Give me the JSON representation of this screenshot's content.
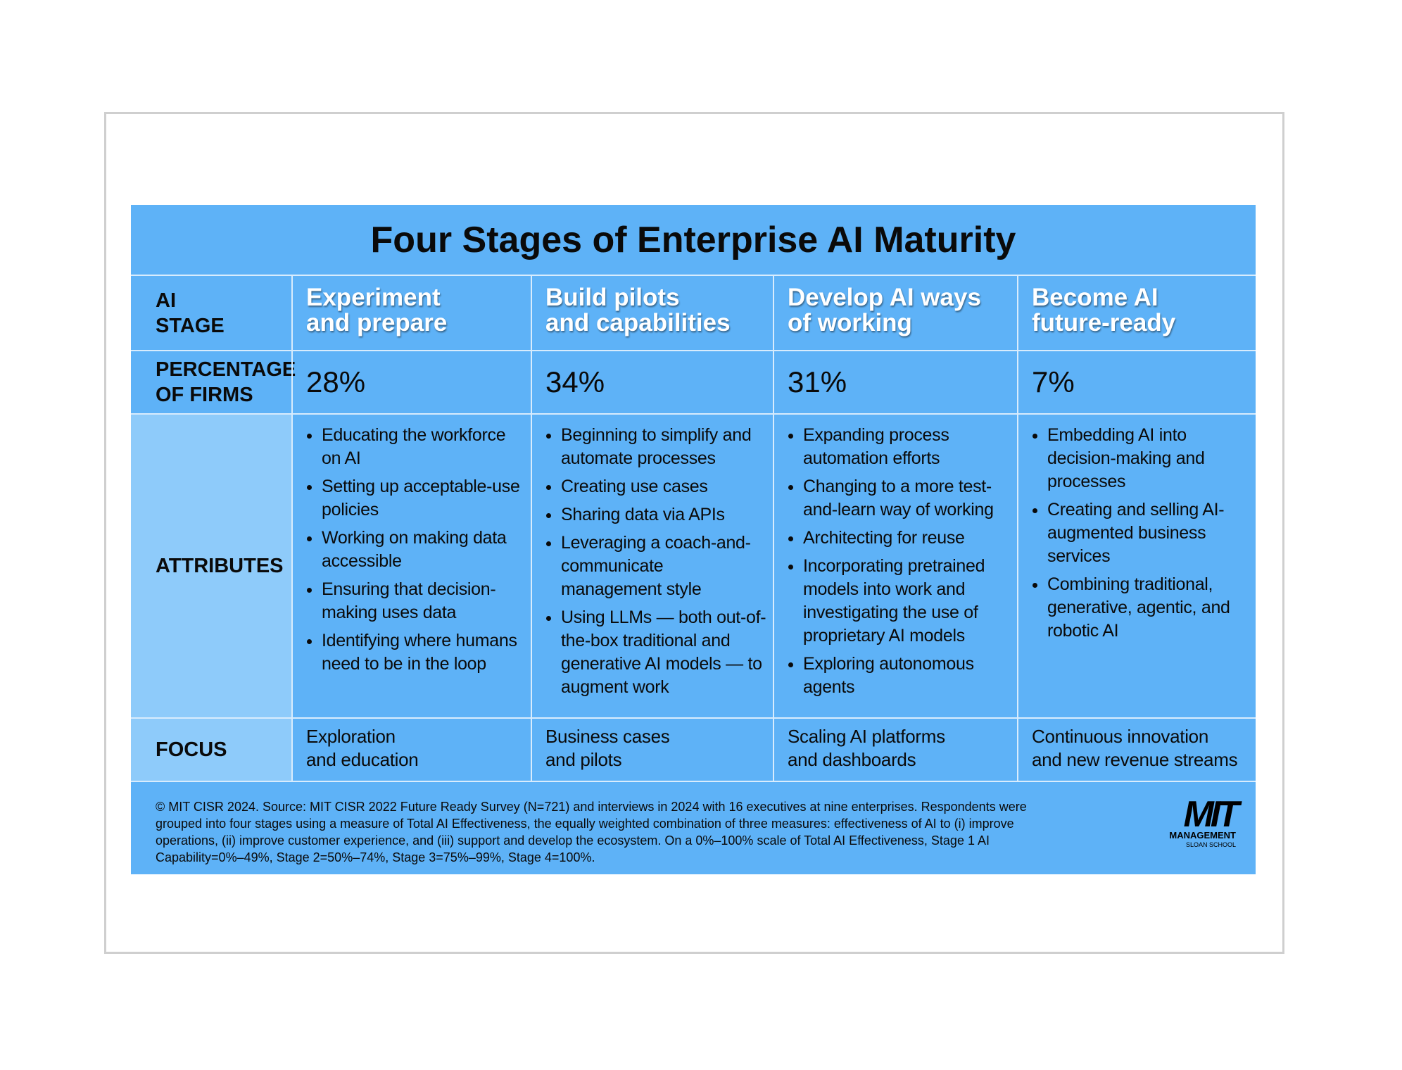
{
  "title": "Four Stages of Enterprise AI Maturity",
  "row_headers": {
    "stage": [
      "AI",
      "STAGE"
    ],
    "percentage": [
      "PERCENTAGE",
      "OF FIRMS"
    ],
    "attributes": [
      "ATTRIBUTES"
    ],
    "focus": [
      "FOCUS"
    ]
  },
  "stages": [
    {
      "name": [
        "Experiment",
        "and prepare"
      ],
      "percentage": "28%",
      "attributes": [
        "Educating the workforce on AI",
        "Setting up acceptable-use policies",
        "Working on making data accessible",
        "Ensuring that decision-making uses data",
        "Identifying where humans need to be in the loop"
      ],
      "focus": [
        "Exploration",
        "and education"
      ]
    },
    {
      "name": [
        "Build pilots",
        "and capabilities"
      ],
      "percentage": "34%",
      "attributes": [
        "Beginning to simplify and automate processes",
        "Creating use cases",
        "Sharing data via APIs",
        "Leveraging a coach-and-communicate management style",
        "Using LLMs — both out-of-the-box traditional and generative AI models — to augment work"
      ],
      "focus": [
        "Business cases",
        "and pilots"
      ]
    },
    {
      "name": [
        "Develop AI ways",
        "of working"
      ],
      "percentage": "31%",
      "attributes": [
        "Expanding process automation efforts",
        "Changing to a more test-and-learn way of working",
        "Architecting for reuse",
        "Incorporating pretrained models into work and investigating the use of proprietary AI models",
        "Exploring autonomous agents"
      ],
      "focus": [
        "Scaling AI platforms",
        "and dashboards"
      ]
    },
    {
      "name": [
        "Become AI",
        "future-ready"
      ],
      "percentage": "7%",
      "attributes": [
        "Embedding AI into decision-making and processes",
        "Creating and selling AI-augmented business services",
        "Combining traditional, generative, agentic, and robotic AI"
      ],
      "focus": [
        "Continuous innovation",
        "and new revenue streams"
      ]
    }
  ],
  "footnote": "© MIT CISR 2024. Source: MIT CISR 2022 Future Ready Survey (N=721) and interviews in 2024 with 16 executives at nine enterprises. Respondents were grouped into four stages using a measure of Total AI Effectiveness, the equally weighted combination of three measures: effectiveness of AI to (i) improve operations, (ii) improve customer experience, and (iii) support and develop the ecosystem. On a 0%–100% scale of Total AI Effectiveness, Stage 1 AI Capability=0%–49%, Stage 2=50%–74%, Stage 3=75%–99%, Stage 4=100%.",
  "logo": {
    "mark": "MIT",
    "line1": "MANAGEMENT",
    "line2": "SLOAN SCHOOL"
  }
}
